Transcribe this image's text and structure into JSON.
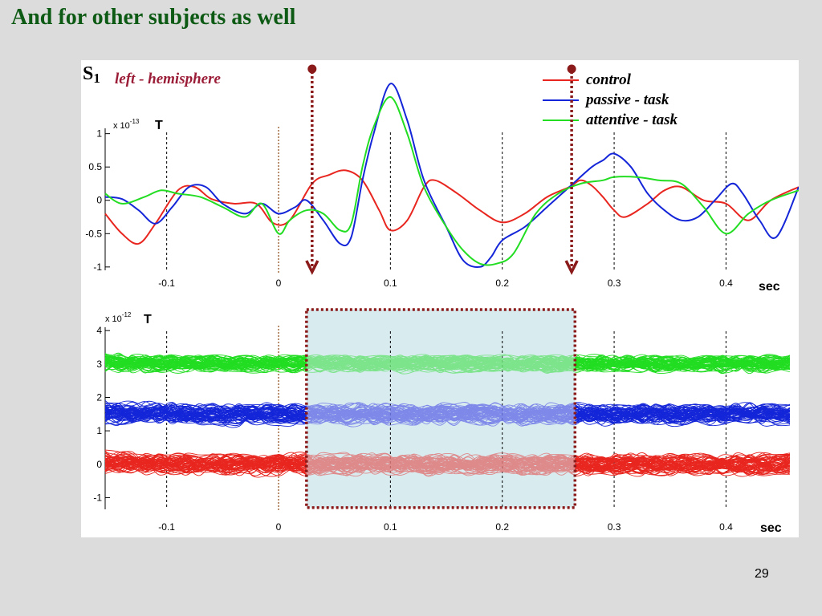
{
  "slide": {
    "title": "And for other subjects as well",
    "page_number": "29"
  },
  "colors": {
    "control": "#e8261f",
    "passive_task": "#1426d8",
    "attentive_task": "#22dd22",
    "marker": "#8b1a1a",
    "window_fill": "#d8ebef"
  },
  "chart_data": [
    {
      "type": "line",
      "subject_label": "S",
      "subject_subscript": "1",
      "hemisphere_label": "left - hemisphere",
      "scale_label": "x 10",
      "scale_exponent": "-13",
      "unit_label": "T",
      "xlabel": "sec",
      "xlim": [
        -0.155,
        0.465
      ],
      "ylim": [
        -1.05,
        1.08
      ],
      "xticks": [
        -0.1,
        0,
        0.1,
        0.2,
        0.3,
        0.4
      ],
      "xtick_labels": [
        "-0.1",
        "0",
        "0.1",
        "0.2",
        "0.3",
        "0.4"
      ],
      "yticks": [
        1,
        0.5,
        0,
        -0.5,
        -1
      ],
      "ytick_labels": [
        "1",
        "0.5",
        "0",
        "-0.5",
        "-1"
      ],
      "vlines": [
        0
      ],
      "markers": [
        0.03,
        0.262
      ],
      "legend_position": "top-right",
      "series": [
        {
          "name": "control",
          "color_key": "control",
          "x": [
            -0.155,
            -0.14,
            -0.125,
            -0.11,
            -0.09,
            -0.075,
            -0.06,
            -0.04,
            -0.02,
            -0.005,
            0.01,
            0.03,
            0.045,
            0.06,
            0.075,
            0.09,
            0.1,
            0.115,
            0.13,
            0.14,
            0.16,
            0.18,
            0.2,
            0.22,
            0.24,
            0.26,
            0.27,
            0.28,
            0.29,
            0.3,
            0.31,
            0.33,
            0.345,
            0.36,
            0.38,
            0.4,
            0.42,
            0.44,
            0.465
          ],
          "y": [
            -0.2,
            -0.5,
            -0.65,
            -0.35,
            0.15,
            0.2,
            0.02,
            -0.05,
            -0.05,
            -0.34,
            -0.3,
            0.25,
            0.38,
            0.45,
            0.3,
            -0.15,
            -0.45,
            -0.3,
            0.2,
            0.3,
            0.1,
            -0.15,
            -0.33,
            -0.2,
            0.05,
            0.2,
            0.3,
            0.22,
            0.05,
            -0.15,
            -0.25,
            -0.05,
            0.15,
            0.2,
            0.0,
            -0.05,
            -0.3,
            0.0,
            0.2
          ]
        },
        {
          "name": "passive - task",
          "color_key": "passive_task",
          "x": [
            -0.155,
            -0.14,
            -0.125,
            -0.11,
            -0.095,
            -0.08,
            -0.065,
            -0.05,
            -0.03,
            -0.015,
            0.0,
            0.015,
            0.025,
            0.04,
            0.055,
            0.065,
            0.075,
            0.085,
            0.1,
            0.115,
            0.13,
            0.15,
            0.165,
            0.18,
            0.19,
            0.2,
            0.22,
            0.24,
            0.26,
            0.28,
            0.29,
            0.3,
            0.315,
            0.33,
            0.345,
            0.36,
            0.375,
            0.39,
            0.405,
            0.415,
            0.43,
            0.445,
            0.465
          ],
          "y": [
            0.05,
            0.02,
            -0.15,
            -0.35,
            -0.1,
            0.2,
            0.2,
            -0.05,
            -0.2,
            -0.05,
            -0.2,
            -0.1,
            0.0,
            -0.3,
            -0.65,
            -0.55,
            0.3,
            1.0,
            1.75,
            1.2,
            0.3,
            -0.4,
            -0.9,
            -1.0,
            -0.85,
            -0.6,
            -0.4,
            -0.1,
            0.2,
            0.5,
            0.6,
            0.7,
            0.5,
            0.1,
            -0.15,
            -0.3,
            -0.25,
            0.0,
            0.25,
            0.1,
            -0.3,
            -0.55,
            0.2
          ]
        },
        {
          "name": "attentive - task",
          "color_key": "attentive_task",
          "x": [
            -0.155,
            -0.14,
            -0.12,
            -0.105,
            -0.09,
            -0.07,
            -0.05,
            -0.03,
            -0.015,
            0.0,
            0.01,
            0.025,
            0.04,
            0.055,
            0.065,
            0.075,
            0.085,
            0.1,
            0.115,
            0.13,
            0.15,
            0.165,
            0.18,
            0.195,
            0.21,
            0.23,
            0.25,
            0.27,
            0.29,
            0.3,
            0.32,
            0.34,
            0.36,
            0.38,
            0.4,
            0.42,
            0.44,
            0.465
          ],
          "y": [
            0.1,
            -0.05,
            0.05,
            0.15,
            0.1,
            0.05,
            -0.1,
            -0.25,
            -0.05,
            -0.5,
            -0.3,
            -0.15,
            -0.2,
            -0.45,
            -0.35,
            0.5,
            1.1,
            1.55,
            1.0,
            0.2,
            -0.4,
            -0.75,
            -0.95,
            -0.95,
            -0.8,
            -0.2,
            0.1,
            0.25,
            0.3,
            0.35,
            0.35,
            0.3,
            0.25,
            -0.1,
            -0.5,
            -0.2,
            0.0,
            0.15
          ]
        }
      ]
    },
    {
      "type": "line",
      "scale_label": "x 10",
      "scale_exponent": "-12",
      "unit_label": "T",
      "xlabel": "sec",
      "xlim": [
        -0.155,
        0.465
      ],
      "ylim": [
        -1.35,
        4.1
      ],
      "xticks": [
        -0.1,
        0,
        0.1,
        0.2,
        0.3,
        0.4
      ],
      "xtick_labels": [
        "-0.1",
        "0",
        "0.1",
        "0.2",
        "0.3",
        "0.4"
      ],
      "yticks": [
        4,
        3,
        2,
        1,
        0,
        -1
      ],
      "ytick_labels": [
        "4",
        "3",
        "2",
        "1",
        "0",
        "-1"
      ],
      "vlines": [
        0
      ],
      "highlight_window": [
        0.025,
        0.265
      ],
      "series": [
        {
          "name": "control",
          "color_key": "control",
          "center": 0.0,
          "spread": 0.28,
          "trials": 60
        },
        {
          "name": "passive - task",
          "color_key": "passive_task",
          "center": 1.5,
          "spread": 0.28,
          "trials": 60
        },
        {
          "name": "attentive - task",
          "color_key": "attentive_task",
          "center": 3.0,
          "spread": 0.22,
          "trials": 60
        }
      ]
    }
  ]
}
